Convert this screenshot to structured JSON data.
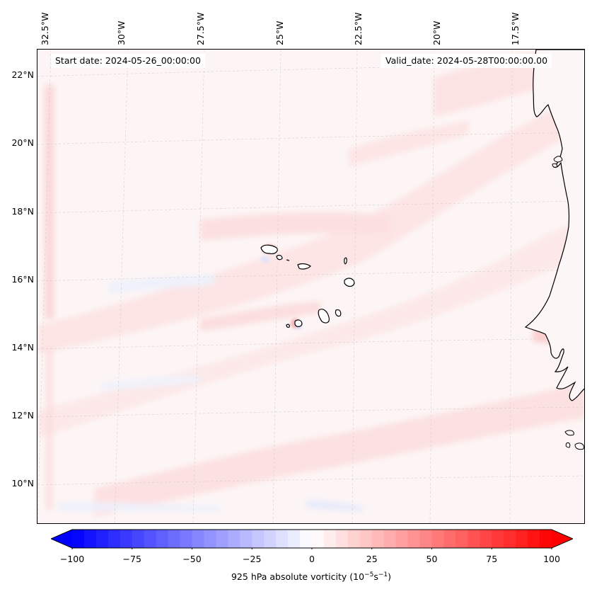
{
  "map": {
    "start_date": "Start date: 2024-05-26_00:00:00",
    "valid_date": "Valid_date: 2024-05-28T00:00:00.00",
    "longitude_labels": [
      "32.5°W",
      "30°W",
      "27.5°W",
      "25°W",
      "22.5°W",
      "20°W",
      "17.5°W"
    ],
    "latitude_labels": [
      "22°N",
      "20°N",
      "18°N",
      "16°N",
      "14°N",
      "12°N",
      "10°N"
    ],
    "variable": "925 hPa absolute vorticity",
    "units_base": "10",
    "units_exp1": "−5",
    "units_s": "s",
    "units_exp2": "−1",
    "features": [
      "Cape Verde islands",
      "West African coastline"
    ]
  },
  "colorbar": {
    "min": -100,
    "max": 100,
    "tick_labels": [
      "−100",
      "−75",
      "−50",
      "−25",
      "0",
      "25",
      "50",
      "75",
      "100"
    ],
    "low_color": "#0000ff",
    "mid_color": "#ffffff",
    "high_color": "#ff0000",
    "extend": "both"
  }
}
